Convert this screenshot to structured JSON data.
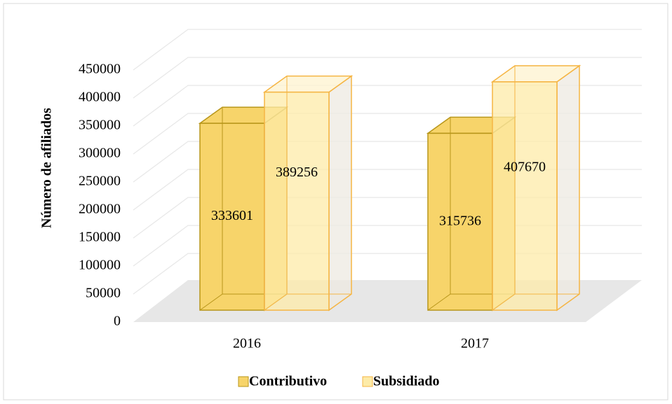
{
  "chart_data": {
    "type": "bar3d",
    "y_label": "Número de afiliados",
    "categories": [
      "2016",
      "2017"
    ],
    "series": [
      {
        "name": "Contributivo",
        "color": "#f7d46a",
        "values": [
          333601,
          315736
        ]
      },
      {
        "name": "Subsidiado",
        "color": "#fdeba8",
        "values": [
          389256,
          407670
        ]
      }
    ],
    "ylim": [
      0,
      450000
    ],
    "yticks": [
      0,
      50000,
      100000,
      150000,
      200000,
      250000,
      300000,
      350000,
      400000,
      450000
    ],
    "grid": true,
    "legend": "bottom"
  }
}
